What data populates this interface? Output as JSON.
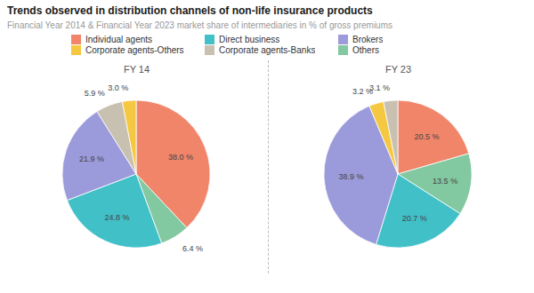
{
  "chart_data": {
    "type": "pie",
    "title": "Trends observed in distribution channels of non-life insurance products",
    "subtitle": "Financial Year 2014 & Financial Year 2023 market share of intermediaries in % of gross premiums",
    "legend": "top",
    "data_labels": true,
    "categories": [
      "Individual agents",
      "Corporate agents-Others",
      "Direct business",
      "Corporate agents-Banks",
      "Brokers",
      "Others"
    ],
    "colors": [
      "#F0856A",
      "#F5C842",
      "#41C0C8",
      "#C8C0B0",
      "#9B9BDB",
      "#82C8A0"
    ],
    "series": [
      {
        "name": "FY 14",
        "categories": [
          "Individual agents",
          "Others",
          "Direct business",
          "Brokers",
          "Corporate agents-Banks",
          "Corporate agents-Others"
        ],
        "values": [
          38.0,
          6.4,
          24.8,
          21.9,
          5.9,
          3.0
        ],
        "value_labels": [
          "38.0 %",
          "6.4 %",
          "24.8 %",
          "21.9 %",
          "5.9 %",
          "3.0 %"
        ]
      },
      {
        "name": "FY 23",
        "categories": [
          "Individual agents",
          "Others",
          "Direct business",
          "Brokers",
          "Corporate agents-Others",
          "Corporate agents-Banks"
        ],
        "values": [
          20.5,
          13.5,
          20.7,
          38.9,
          3.2,
          3.1
        ],
        "value_labels": [
          "20.5 %",
          "13.5 %",
          "20.7 %",
          "38.9 %",
          "3.2 %",
          "3.1 %"
        ]
      }
    ]
  }
}
